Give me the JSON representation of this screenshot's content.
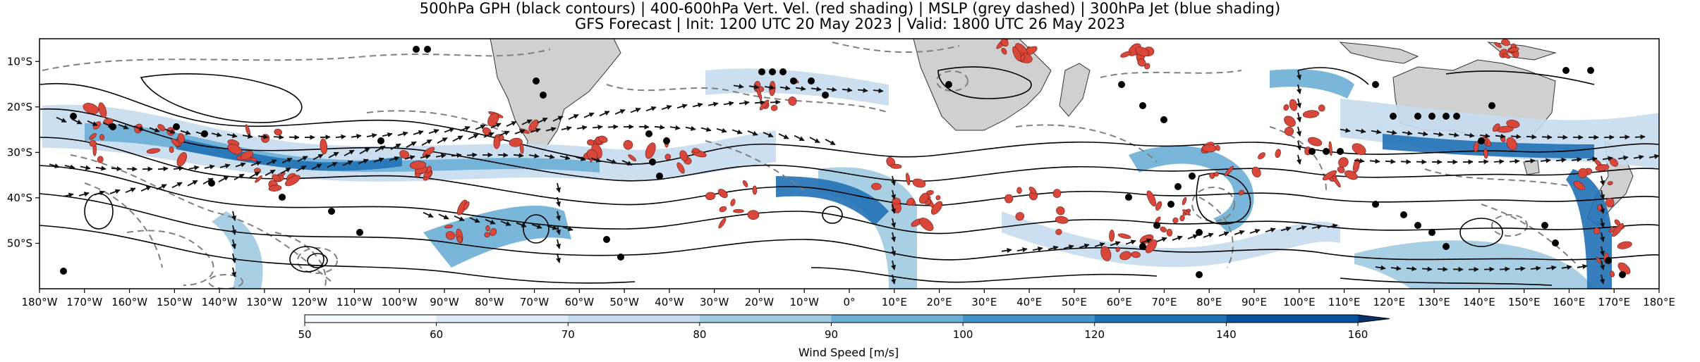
{
  "title_line1": "500hPa GPH (black contours) | 400-600hPa Vert. Vel. (red shading) | MSLP (grey dashed) | 300hPa Jet (blue shading)",
  "title_line2": "GFS Forecast | Init: 1200 UTC 20 May 2023 | Valid: 1800 UTC 26 May 2023",
  "map": {
    "lon_range": [
      -180,
      180
    ],
    "lat_range": [
      -60,
      -5
    ],
    "lon_ticks": [
      "180°W",
      "170°W",
      "160°W",
      "150°W",
      "140°W",
      "130°W",
      "120°W",
      "110°W",
      "100°W",
      "90°W",
      "80°W",
      "70°W",
      "60°W",
      "50°W",
      "40°W",
      "30°W",
      "20°W",
      "10°W",
      "0°",
      "10°E",
      "20°E",
      "30°E",
      "40°E",
      "50°E",
      "60°E",
      "70°E",
      "80°E",
      "90°E",
      "100°E",
      "110°E",
      "120°E",
      "130°E",
      "140°E",
      "150°E",
      "160°E",
      "170°E",
      "180°E"
    ],
    "lat_ticks": [
      "10°S",
      "20°S",
      "30°S",
      "40°S",
      "50°S"
    ],
    "colors": {
      "land": "#d0d0d0",
      "gph_contour": "#000000",
      "mslp_contour": "#808080",
      "vertical_velocity": "#d9473a",
      "jet_light": "#c6dcef",
      "jet_mid": "#6baed6",
      "jet_dark": "#2171b5"
    }
  },
  "colorbar": {
    "label": "Wind Speed [m/s]",
    "ticks": [
      "50",
      "60",
      "70",
      "80",
      "90",
      "100",
      "120",
      "140",
      "160"
    ],
    "values": [
      50,
      60,
      70,
      80,
      90,
      100,
      120,
      140,
      160
    ],
    "extend": "max",
    "colors": [
      "#f7fbff",
      "#deebf7",
      "#c6dbef",
      "#9ecae1",
      "#6baed6",
      "#4292c6",
      "#2171b5",
      "#08519c",
      "#08306b"
    ]
  }
}
